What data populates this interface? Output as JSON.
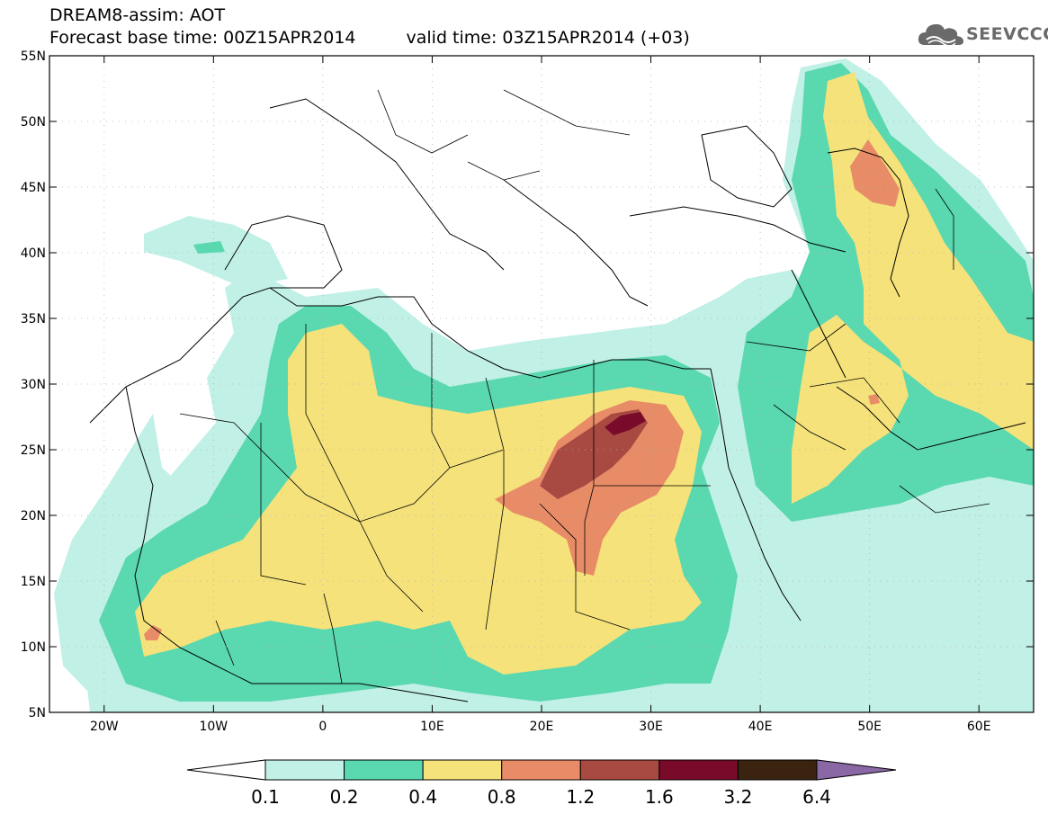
{
  "header": {
    "line1": "DREAM8-assim: AOT",
    "base_time": "Forecast base time: 00Z15APR2014",
    "valid_time": "valid time: 03Z15APR2014 (+03)"
  },
  "logo": {
    "text": "SEEVCCC",
    "icon": "cloud-icon"
  },
  "map": {
    "lon_range": [
      -25,
      65
    ],
    "lat_range": [
      5,
      55
    ],
    "lon_ticks": [
      {
        "lon": -20,
        "label": "20W"
      },
      {
        "lon": -10,
        "label": "10W"
      },
      {
        "lon": 0,
        "label": "0"
      },
      {
        "lon": 10,
        "label": "10E"
      },
      {
        "lon": 20,
        "label": "20E"
      },
      {
        "lon": 30,
        "label": "30E"
      },
      {
        "lon": 40,
        "label": "40E"
      },
      {
        "lon": 50,
        "label": "50E"
      },
      {
        "lon": 60,
        "label": "60E"
      }
    ],
    "lat_ticks": [
      {
        "lat": 55,
        "label": "55N"
      },
      {
        "lat": 50,
        "label": "50N"
      },
      {
        "lat": 45,
        "label": "45N"
      },
      {
        "lat": 40,
        "label": "40N"
      },
      {
        "lat": 35,
        "label": "35N"
      },
      {
        "lat": 30,
        "label": "30N"
      },
      {
        "lat": 25,
        "label": "25N"
      },
      {
        "lat": 20,
        "label": "20N"
      },
      {
        "lat": 15,
        "label": "15N"
      },
      {
        "lat": 10,
        "label": "10N"
      },
      {
        "lat": 5,
        "label": "5N"
      }
    ],
    "grid": true
  },
  "colorbar": {
    "levels": [
      "0.1",
      "0.2",
      "0.4",
      "0.8",
      "1.2",
      "1.6",
      "3.2",
      "6.4"
    ],
    "colors": [
      "#ffffff",
      "#c0f0e6",
      "#5ad8b0",
      "#f5e27a",
      "#e88c68",
      "#a84a42",
      "#7a0a2a",
      "#3a2410",
      "#8a68a6"
    ]
  }
}
